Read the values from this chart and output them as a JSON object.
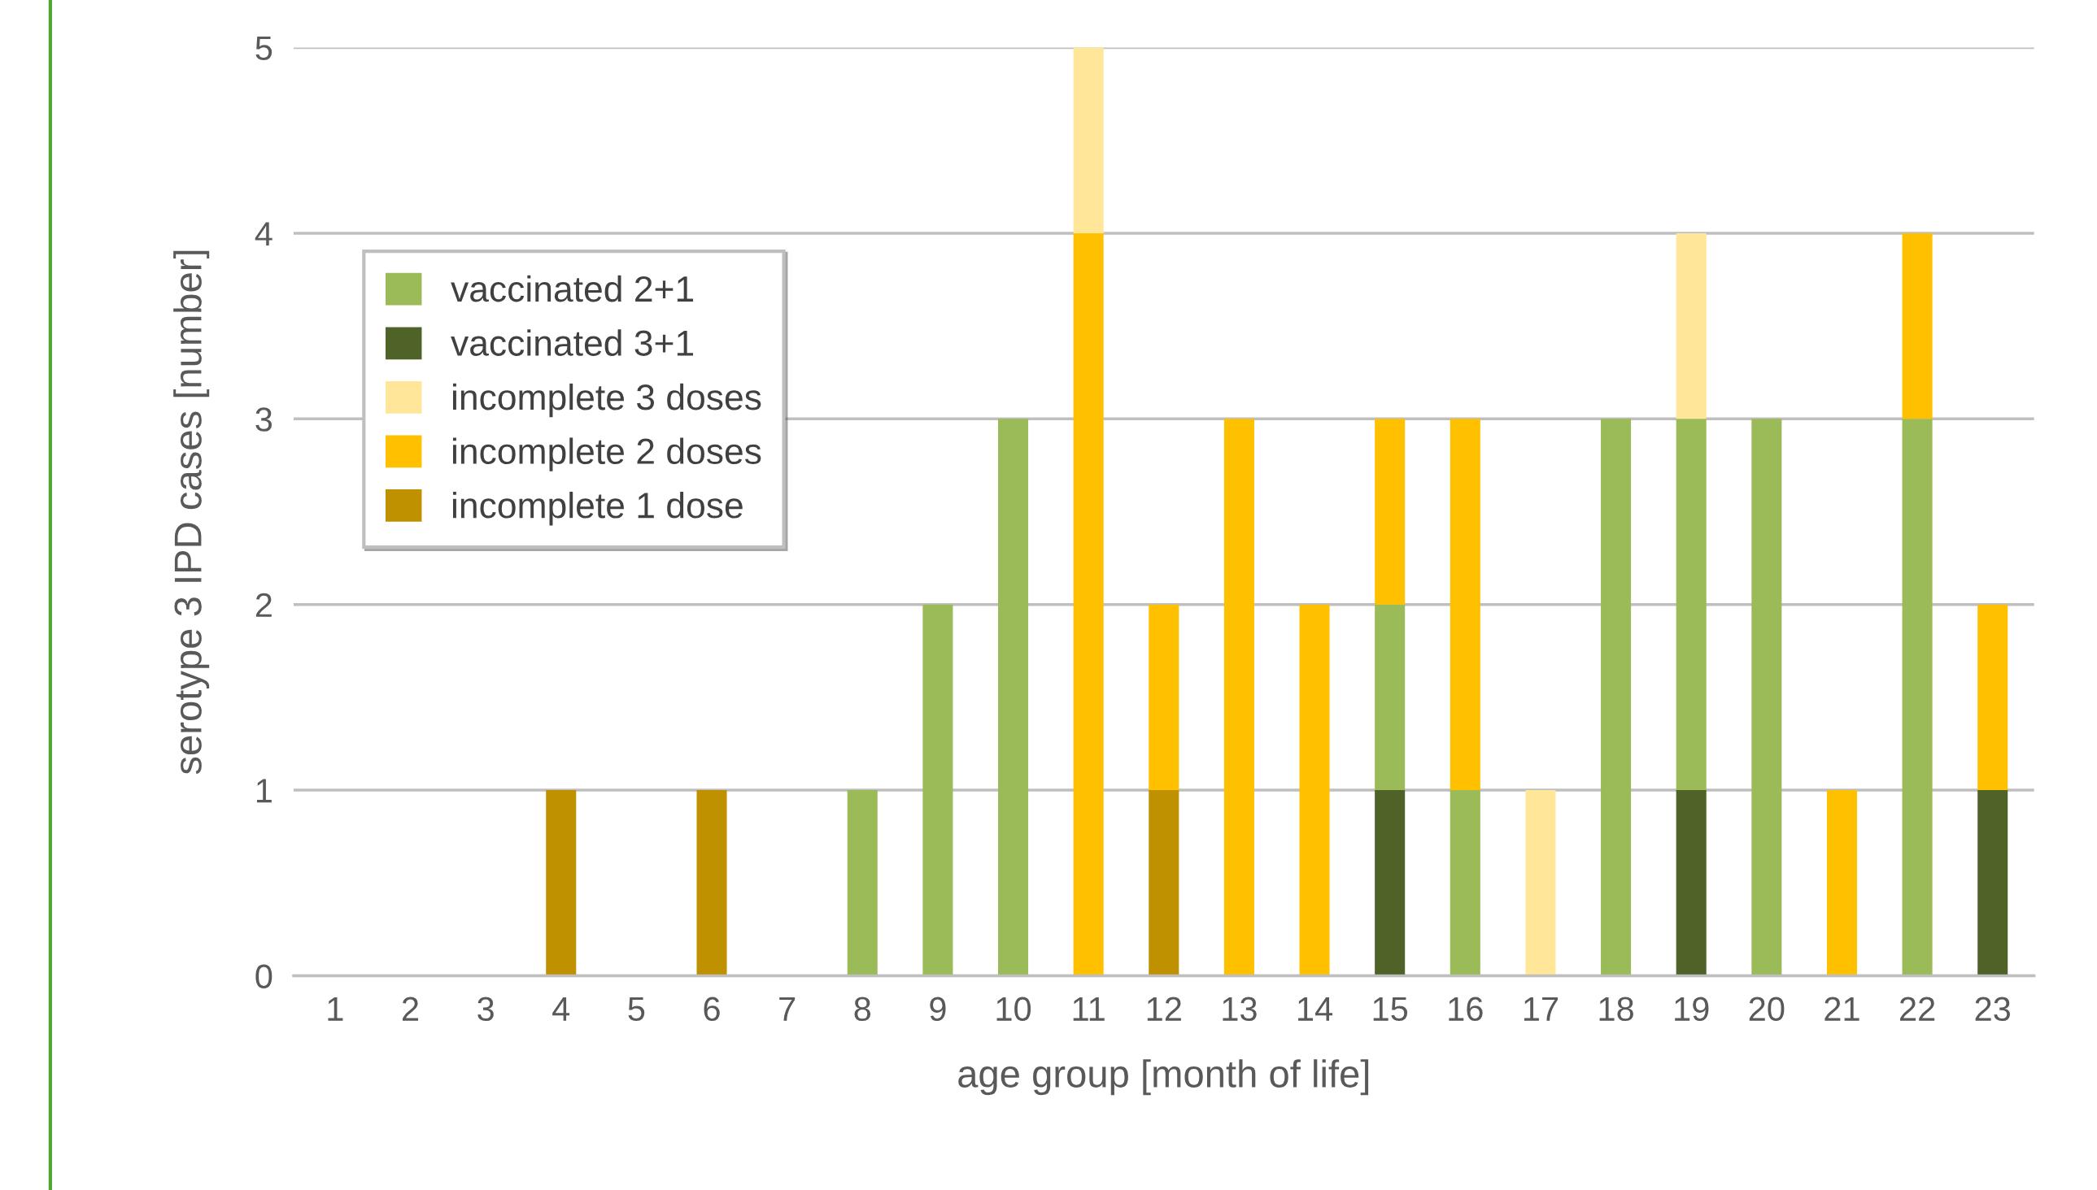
{
  "chart_data": {
    "type": "bar",
    "stacked": true,
    "xlabel": "age group [month of life]",
    "ylabel": "serotype 3 IPD cases [number]",
    "categories": [
      "1",
      "2",
      "3",
      "4",
      "5",
      "6",
      "7",
      "8",
      "9",
      "10",
      "11",
      "12",
      "13",
      "14",
      "15",
      "16",
      "17",
      "18",
      "19",
      "20",
      "21",
      "22",
      "23"
    ],
    "series": [
      {
        "name": "incomplete 1 dose",
        "color": "#bf9000",
        "values": [
          0,
          0,
          0,
          1,
          0,
          1,
          0,
          0,
          0,
          0,
          0,
          1,
          0,
          0,
          0,
          0,
          0,
          0,
          0,
          0,
          0,
          0,
          0
        ]
      },
      {
        "name": "vaccinated 3+1",
        "color": "#4f6228",
        "values": [
          0,
          0,
          0,
          0,
          0,
          0,
          0,
          0,
          0,
          0,
          0,
          0,
          0,
          0,
          1,
          0,
          0,
          0,
          1,
          0,
          0,
          0,
          1
        ]
      },
      {
        "name": "vaccinated 2+1",
        "color": "#9bbb59",
        "values": [
          0,
          0,
          0,
          0,
          0,
          0,
          0,
          1,
          2,
          3,
          0,
          0,
          0,
          0,
          1,
          1,
          0,
          3,
          2,
          3,
          0,
          3,
          0
        ]
      },
      {
        "name": "incomplete 2 doses",
        "color": "#ffc000",
        "values": [
          0,
          0,
          0,
          0,
          0,
          0,
          0,
          0,
          0,
          0,
          4,
          1,
          3,
          2,
          1,
          2,
          0,
          0,
          0,
          0,
          1,
          1,
          1
        ]
      },
      {
        "name": "incomplete 3 doses",
        "color": "#ffe699",
        "values": [
          0,
          0,
          0,
          0,
          0,
          0,
          0,
          0,
          0,
          0,
          1,
          0,
          0,
          0,
          0,
          0,
          1,
          0,
          1,
          0,
          0,
          0,
          0
        ]
      }
    ],
    "ylim": [
      0,
      5
    ],
    "yticks": [
      0,
      1,
      2,
      3,
      4,
      5
    ],
    "grid": "y",
    "legend": "top left"
  }
}
